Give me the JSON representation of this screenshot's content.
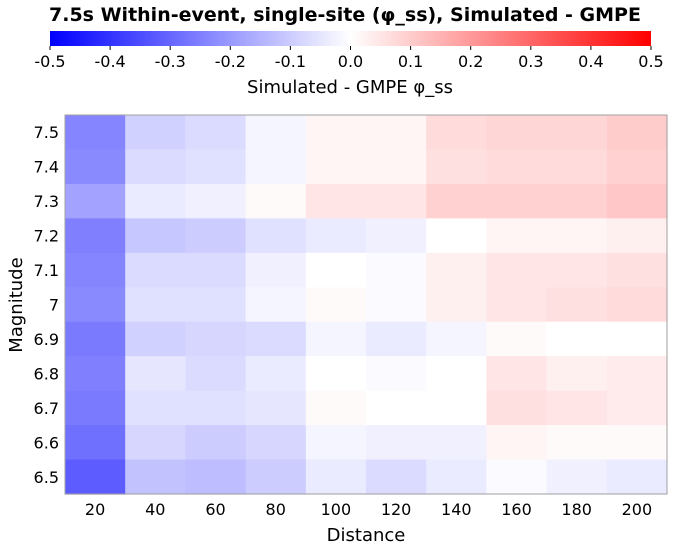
{
  "chart_data": {
    "type": "heatmap",
    "title": "7.5s Within-event, single-site (φ_ss), Simulated - GMPE",
    "xlabel": "Distance",
    "ylabel": "Magnitude",
    "colorbar": {
      "label": "Simulated - GMPE φ_ss",
      "range": [
        -0.5,
        0.5
      ],
      "ticks": [
        "-0.5",
        "-0.4",
        "-0.3",
        "-0.2",
        "-0.1",
        "0.0",
        "0.1",
        "0.2",
        "0.3",
        "0.4",
        "0.5"
      ],
      "colors": {
        "low": "#0000ff",
        "mid": "#ffffff",
        "high": "#ff0000"
      }
    },
    "x": [
      "20",
      "40",
      "60",
      "80",
      "100",
      "120",
      "140",
      "160",
      "180",
      "200"
    ],
    "y": [
      "7.5",
      "7.4",
      "7.3",
      "7.2",
      "7.1",
      "7",
      "6.9",
      "6.8",
      "6.7",
      "6.6",
      "6.5"
    ],
    "values": [
      [
        -0.24,
        -0.09,
        -0.07,
        -0.02,
        0.02,
        0.02,
        0.07,
        0.08,
        0.08,
        0.1
      ],
      [
        -0.23,
        -0.07,
        -0.06,
        -0.02,
        0.02,
        0.02,
        0.06,
        0.07,
        0.07,
        0.09
      ],
      [
        -0.18,
        -0.04,
        -0.03,
        0.01,
        0.05,
        0.05,
        0.09,
        0.09,
        0.09,
        0.11
      ],
      [
        -0.25,
        -0.11,
        -0.1,
        -0.06,
        -0.04,
        -0.03,
        0.0,
        0.02,
        0.02,
        0.03
      ],
      [
        -0.24,
        -0.07,
        -0.07,
        -0.03,
        0.0,
        -0.01,
        0.03,
        0.05,
        0.05,
        0.06
      ],
      [
        -0.23,
        -0.06,
        -0.06,
        -0.02,
        0.01,
        -0.01,
        0.03,
        0.05,
        0.06,
        0.07
      ],
      [
        -0.26,
        -0.09,
        -0.08,
        -0.07,
        -0.02,
        -0.04,
        -0.02,
        0.01,
        0.0,
        0.0
      ],
      [
        -0.25,
        -0.05,
        -0.07,
        -0.04,
        0.0,
        -0.01,
        0.0,
        0.05,
        0.03,
        0.04
      ],
      [
        -0.26,
        -0.06,
        -0.06,
        -0.05,
        0.01,
        0.0,
        0.0,
        0.06,
        0.05,
        0.04
      ],
      [
        -0.28,
        -0.08,
        -0.1,
        -0.08,
        -0.02,
        -0.03,
        -0.03,
        0.02,
        0.01,
        0.01
      ],
      [
        -0.32,
        -0.12,
        -0.13,
        -0.1,
        -0.04,
        -0.07,
        -0.04,
        -0.01,
        -0.03,
        -0.04
      ]
    ]
  }
}
